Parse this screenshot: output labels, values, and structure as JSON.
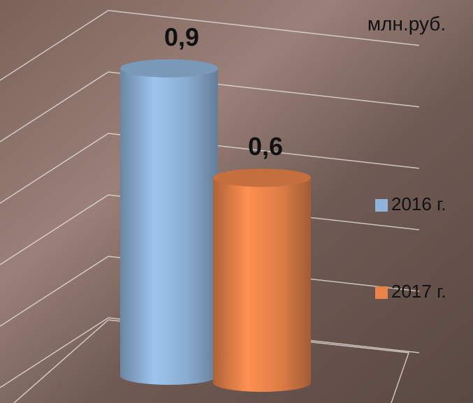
{
  "chart_data": {
    "type": "bar",
    "unit_label": "млн.руб.",
    "series": [
      {
        "name": "2016 г.",
        "color": "#8fb3d9",
        "values": [
          0.9
        ],
        "value_labels": [
          "0,9"
        ]
      },
      {
        "name": "2017 г.",
        "color": "#e8834a",
        "values": [
          0.6
        ],
        "value_labels": [
          "0,6"
        ]
      }
    ],
    "ylim": [
      0,
      1
    ],
    "yticks": [
      0,
      0.2,
      0.4,
      0.6,
      0.8,
      1
    ],
    "grid": true
  }
}
